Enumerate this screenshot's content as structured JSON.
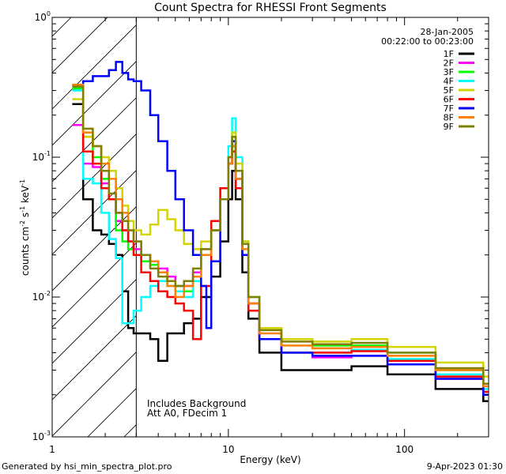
{
  "chart_data": {
    "type": "line",
    "title": "Count Spectra for RHESSI Front Segments",
    "xlabel": "Energy (keV)",
    "ylabel_main": "counts cm",
    "ylabel_sup1": "-2",
    "ylabel_mid": " s",
    "ylabel_sup2": "-1",
    "ylabel_end": " keV",
    "ylabel_sup3": "-1",
    "x_scale": "log",
    "y_scale": "log",
    "xlim": [
      1,
      300
    ],
    "ylim": [
      0.001,
      1
    ],
    "x_ticks": [
      {
        "value": 1,
        "label": "1"
      },
      {
        "value": 10,
        "label": "10"
      },
      {
        "value": 100,
        "label": "100"
      }
    ],
    "y_ticks": [
      {
        "value": 1,
        "base": "10",
        "exp": "0"
      },
      {
        "value": 0.1,
        "base": "10",
        "exp": "-1"
      },
      {
        "value": 0.01,
        "base": "10",
        "exp": "-2"
      },
      {
        "value": 0.001,
        "base": "10",
        "exp": "-3"
      }
    ],
    "date_label": "28-Jan-2005",
    "time_label": "00:22:00 to 00:23:00",
    "annotation_line1": "Includes Background",
    "annotation_line2": "Att A0, FDecim 1",
    "attenuator_shade_upper_kev": 3,
    "series": [
      {
        "name": "1F",
        "color": "#000000",
        "points": [
          [
            1.3,
            0.24
          ],
          [
            1.5,
            0.05
          ],
          [
            1.7,
            0.03
          ],
          [
            1.9,
            0.028
          ],
          [
            2.1,
            0.024
          ],
          [
            2.3,
            0.02
          ],
          [
            2.5,
            0.011
          ],
          [
            2.7,
            0.006
          ],
          [
            2.9,
            0.0055
          ],
          [
            3.2,
            0.0055
          ],
          [
            3.6,
            0.005
          ],
          [
            4.0,
            0.0035
          ],
          [
            4.5,
            0.0055
          ],
          [
            5.0,
            0.0055
          ],
          [
            5.6,
            0.0065
          ],
          [
            6.3,
            0.007
          ],
          [
            7.0,
            0.01
          ],
          [
            8.0,
            0.014
          ],
          [
            9.0,
            0.025
          ],
          [
            10.0,
            0.05
          ],
          [
            10.5,
            0.08
          ],
          [
            11.0,
            0.05
          ],
          [
            12.0,
            0.015
          ],
          [
            13.0,
            0.007
          ],
          [
            15.0,
            0.004
          ],
          [
            20.0,
            0.003
          ],
          [
            30.0,
            0.003
          ],
          [
            50.0,
            0.0032
          ],
          [
            80.0,
            0.0028
          ],
          [
            150.0,
            0.0022
          ],
          [
            280.0,
            0.0018
          ]
        ]
      },
      {
        "name": "2F",
        "color": "#ff00ff",
        "points": [
          [
            1.3,
            0.17
          ],
          [
            1.5,
            0.09
          ],
          [
            1.7,
            0.085
          ],
          [
            1.9,
            0.065
          ],
          [
            2.1,
            0.05
          ],
          [
            2.3,
            0.035
          ],
          [
            2.5,
            0.03
          ],
          [
            2.7,
            0.025
          ],
          [
            2.9,
            0.022
          ],
          [
            3.2,
            0.02
          ],
          [
            3.6,
            0.018
          ],
          [
            4.0,
            0.016
          ],
          [
            4.5,
            0.014
          ],
          [
            5.0,
            0.012
          ],
          [
            5.6,
            0.012
          ],
          [
            6.3,
            0.015
          ],
          [
            7.0,
            0.022
          ],
          [
            8.0,
            0.03
          ],
          [
            9.0,
            0.05
          ],
          [
            10.0,
            0.09
          ],
          [
            10.5,
            0.12
          ],
          [
            11.0,
            0.07
          ],
          [
            12.0,
            0.02
          ],
          [
            13.0,
            0.009
          ],
          [
            15.0,
            0.005
          ],
          [
            20.0,
            0.004
          ],
          [
            30.0,
            0.0037
          ],
          [
            50.0,
            0.0038
          ],
          [
            80.0,
            0.0033
          ],
          [
            150.0,
            0.0026
          ],
          [
            280.0,
            0.0021
          ]
        ]
      },
      {
        "name": "3F",
        "color": "#00ff00",
        "points": [
          [
            1.3,
            0.31
          ],
          [
            1.5,
            0.14
          ],
          [
            1.7,
            0.1
          ],
          [
            1.9,
            0.07
          ],
          [
            2.1,
            0.05
          ],
          [
            2.3,
            0.03
          ],
          [
            2.5,
            0.025
          ],
          [
            2.7,
            0.022
          ],
          [
            2.9,
            0.02
          ],
          [
            3.2,
            0.018
          ],
          [
            3.6,
            0.017
          ],
          [
            4.0,
            0.015
          ],
          [
            4.5,
            0.013
          ],
          [
            5.0,
            0.012
          ],
          [
            5.6,
            0.011
          ],
          [
            6.3,
            0.013
          ],
          [
            7.0,
            0.02
          ],
          [
            8.0,
            0.03
          ],
          [
            9.0,
            0.05
          ],
          [
            10.0,
            0.1
          ],
          [
            10.5,
            0.13
          ],
          [
            11.0,
            0.08
          ],
          [
            12.0,
            0.025
          ],
          [
            13.0,
            0.01
          ],
          [
            15.0,
            0.006
          ],
          [
            20.0,
            0.005
          ],
          [
            30.0,
            0.0045
          ],
          [
            50.0,
            0.0045
          ],
          [
            80.0,
            0.004
          ],
          [
            150.0,
            0.003
          ],
          [
            280.0,
            0.0024
          ]
        ]
      },
      {
        "name": "4F",
        "color": "#00ffff",
        "points": [
          [
            1.3,
            0.3
          ],
          [
            1.5,
            0.07
          ],
          [
            1.7,
            0.065
          ],
          [
            1.9,
            0.04
          ],
          [
            2.1,
            0.026
          ],
          [
            2.3,
            0.019
          ],
          [
            2.5,
            0.0065
          ],
          [
            2.7,
            0.0065
          ],
          [
            2.9,
            0.008
          ],
          [
            3.2,
            0.01
          ],
          [
            3.6,
            0.012
          ],
          [
            4.0,
            0.013
          ],
          [
            4.5,
            0.012
          ],
          [
            5.0,
            0.011
          ],
          [
            5.6,
            0.01
          ],
          [
            6.3,
            0.013
          ],
          [
            7.0,
            0.02
          ],
          [
            8.0,
            0.03
          ],
          [
            9.0,
            0.06
          ],
          [
            10.0,
            0.12
          ],
          [
            10.5,
            0.19
          ],
          [
            11.0,
            0.1
          ],
          [
            12.0,
            0.025
          ],
          [
            13.0,
            0.01
          ],
          [
            15.0,
            0.006
          ],
          [
            20.0,
            0.004
          ],
          [
            30.0,
            0.004
          ],
          [
            50.0,
            0.0042
          ],
          [
            80.0,
            0.0036
          ],
          [
            150.0,
            0.0028
          ],
          [
            280.0,
            0.0022
          ]
        ]
      },
      {
        "name": "5F",
        "color": "#d4d400",
        "points": [
          [
            1.3,
            0.26
          ],
          [
            1.5,
            0.14
          ],
          [
            1.7,
            0.12
          ],
          [
            1.9,
            0.1
          ],
          [
            2.1,
            0.08
          ],
          [
            2.3,
            0.06
          ],
          [
            2.5,
            0.045
          ],
          [
            2.7,
            0.035
          ],
          [
            2.9,
            0.03
          ],
          [
            3.2,
            0.028
          ],
          [
            3.6,
            0.033
          ],
          [
            4.0,
            0.042
          ],
          [
            4.5,
            0.036
          ],
          [
            5.0,
            0.03
          ],
          [
            5.6,
            0.024
          ],
          [
            6.3,
            0.022
          ],
          [
            7.0,
            0.025
          ],
          [
            8.0,
            0.035
          ],
          [
            9.0,
            0.06
          ],
          [
            10.0,
            0.1
          ],
          [
            10.5,
            0.15
          ],
          [
            11.0,
            0.09
          ],
          [
            12.0,
            0.025
          ],
          [
            13.0,
            0.01
          ],
          [
            15.0,
            0.006
          ],
          [
            20.0,
            0.005
          ],
          [
            30.0,
            0.0048
          ],
          [
            50.0,
            0.005
          ],
          [
            80.0,
            0.0044
          ],
          [
            150.0,
            0.0034
          ],
          [
            280.0,
            0.0027
          ]
        ]
      },
      {
        "name": "6F",
        "color": "#ff0000",
        "points": [
          [
            1.3,
            0.33
          ],
          [
            1.5,
            0.11
          ],
          [
            1.7,
            0.09
          ],
          [
            1.9,
            0.06
          ],
          [
            2.1,
            0.05
          ],
          [
            2.3,
            0.04
          ],
          [
            2.5,
            0.03
          ],
          [
            2.7,
            0.025
          ],
          [
            2.9,
            0.02
          ],
          [
            3.2,
            0.015
          ],
          [
            3.6,
            0.013
          ],
          [
            4.0,
            0.011
          ],
          [
            4.5,
            0.01
          ],
          [
            5.0,
            0.009
          ],
          [
            5.6,
            0.008
          ],
          [
            6.3,
            0.005
          ],
          [
            7.0,
            0.012
          ],
          [
            8.0,
            0.035
          ],
          [
            9.0,
            0.06
          ],
          [
            10.0,
            0.09
          ],
          [
            10.5,
            0.11
          ],
          [
            11.0,
            0.06
          ],
          [
            12.0,
            0.02
          ],
          [
            13.0,
            0.008
          ],
          [
            15.0,
            0.005
          ],
          [
            20.0,
            0.004
          ],
          [
            30.0,
            0.004
          ],
          [
            50.0,
            0.0041
          ],
          [
            80.0,
            0.0035
          ],
          [
            150.0,
            0.0027
          ],
          [
            280.0,
            0.0021
          ]
        ]
      },
      {
        "name": "7F",
        "color": "#0000ff",
        "points": [
          [
            1.3,
            0.33
          ],
          [
            1.5,
            0.35
          ],
          [
            1.7,
            0.38
          ],
          [
            1.9,
            0.38
          ],
          [
            2.1,
            0.42
          ],
          [
            2.3,
            0.48
          ],
          [
            2.5,
            0.4
          ],
          [
            2.7,
            0.36
          ],
          [
            2.9,
            0.35
          ],
          [
            3.2,
            0.3
          ],
          [
            3.6,
            0.2
          ],
          [
            4.0,
            0.13
          ],
          [
            4.5,
            0.08
          ],
          [
            5.0,
            0.05
          ],
          [
            5.6,
            0.03
          ],
          [
            6.3,
            0.02
          ],
          [
            7.0,
            0.012
          ],
          [
            7.5,
            0.006
          ],
          [
            8.0,
            0.018
          ],
          [
            9.0,
            0.05
          ],
          [
            10.0,
            0.09
          ],
          [
            10.5,
            0.13
          ],
          [
            11.0,
            0.07
          ],
          [
            12.0,
            0.02
          ],
          [
            13.0,
            0.009
          ],
          [
            15.0,
            0.005
          ],
          [
            20.0,
            0.004
          ],
          [
            30.0,
            0.0038
          ],
          [
            50.0,
            0.0038
          ],
          [
            80.0,
            0.0033
          ],
          [
            150.0,
            0.0026
          ],
          [
            280.0,
            0.002
          ]
        ]
      },
      {
        "name": "8F",
        "color": "#ff8000",
        "points": [
          [
            1.3,
            0.33
          ],
          [
            1.5,
            0.15
          ],
          [
            1.7,
            0.12
          ],
          [
            1.9,
            0.09
          ],
          [
            2.1,
            0.07
          ],
          [
            2.3,
            0.05
          ],
          [
            2.5,
            0.04
          ],
          [
            2.7,
            0.03
          ],
          [
            2.9,
            0.025
          ],
          [
            3.2,
            0.02
          ],
          [
            3.6,
            0.018
          ],
          [
            4.0,
            0.015
          ],
          [
            4.5,
            0.012
          ],
          [
            5.0,
            0.01
          ],
          [
            5.6,
            0.012
          ],
          [
            6.3,
            0.014
          ],
          [
            7.0,
            0.02
          ],
          [
            8.0,
            0.03
          ],
          [
            9.0,
            0.05
          ],
          [
            10.0,
            0.09
          ],
          [
            10.5,
            0.12
          ],
          [
            11.0,
            0.07
          ],
          [
            12.0,
            0.022
          ],
          [
            13.0,
            0.009
          ],
          [
            15.0,
            0.0055
          ],
          [
            20.0,
            0.0045
          ],
          [
            30.0,
            0.0043
          ],
          [
            50.0,
            0.0044
          ],
          [
            80.0,
            0.0038
          ],
          [
            150.0,
            0.003
          ],
          [
            280.0,
            0.0023
          ]
        ]
      },
      {
        "name": "9F",
        "color": "#808000",
        "points": [
          [
            1.3,
            0.32
          ],
          [
            1.5,
            0.16
          ],
          [
            1.7,
            0.12
          ],
          [
            1.9,
            0.08
          ],
          [
            2.1,
            0.055
          ],
          [
            2.3,
            0.04
          ],
          [
            2.5,
            0.035
          ],
          [
            2.7,
            0.03
          ],
          [
            2.9,
            0.025
          ],
          [
            3.2,
            0.02
          ],
          [
            3.6,
            0.016
          ],
          [
            4.0,
            0.014
          ],
          [
            4.5,
            0.013
          ],
          [
            5.0,
            0.012
          ],
          [
            5.6,
            0.013
          ],
          [
            6.3,
            0.016
          ],
          [
            7.0,
            0.022
          ],
          [
            8.0,
            0.03
          ],
          [
            9.0,
            0.05
          ],
          [
            10.0,
            0.1
          ],
          [
            10.5,
            0.14
          ],
          [
            11.0,
            0.08
          ],
          [
            12.0,
            0.024
          ],
          [
            13.0,
            0.01
          ],
          [
            15.0,
            0.0058
          ],
          [
            20.0,
            0.0048
          ],
          [
            30.0,
            0.0046
          ],
          [
            50.0,
            0.0047
          ],
          [
            80.0,
            0.004
          ],
          [
            150.0,
            0.0031
          ],
          [
            280.0,
            0.0024
          ]
        ]
      }
    ]
  },
  "footer": {
    "generated_by": "Generated by hsi_min_spectra_plot.pro",
    "timestamp": "9-Apr-2023 01:30"
  }
}
